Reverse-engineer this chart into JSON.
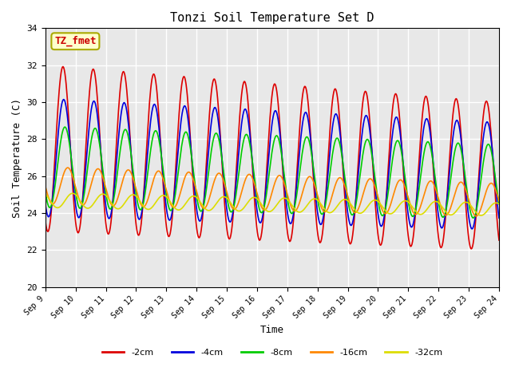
{
  "title": "Tonzi Soil Temperature Set D",
  "xlabel": "Time",
  "ylabel": "Soil Temperature (C)",
  "ylim": [
    20,
    34
  ],
  "xlim": [
    0,
    15
  ],
  "series_labels": [
    "-2cm",
    "-4cm",
    "-8cm",
    "-16cm",
    "-32cm"
  ],
  "series_colors": [
    "#dd0000",
    "#0000dd",
    "#00cc00",
    "#ff8800",
    "#dddd00"
  ],
  "series_linewidths": [
    1.5,
    1.5,
    1.5,
    1.5,
    1.5
  ],
  "annotation_text": "TZ_fmet",
  "annotation_fgcolor": "#cc0000",
  "annotation_bgcolor": "#ffffcc",
  "annotation_edgecolor": "#aaaa00",
  "background_color": "#e8e8e8",
  "xtick_labels": [
    "Sep 9",
    "Sep 10",
    "Sep 11",
    "Sep 12",
    "Sep 13",
    "Sep 14",
    "Sep 15",
    "Sep 16",
    "Sep 17",
    "Sep 18",
    "Sep 19",
    "Sep 20",
    "Sep 21",
    "Sep 22",
    "Sep 23",
    "Sep 24"
  ],
  "ytick_labels": [
    "20",
    "22",
    "24",
    "26",
    "28",
    "30",
    "32",
    "34"
  ],
  "ytick_values": [
    20,
    22,
    24,
    26,
    28,
    30,
    32,
    34
  ],
  "days": 15,
  "points_per_day": 48,
  "grid_color": "#ffffff",
  "font_family": "monospace"
}
